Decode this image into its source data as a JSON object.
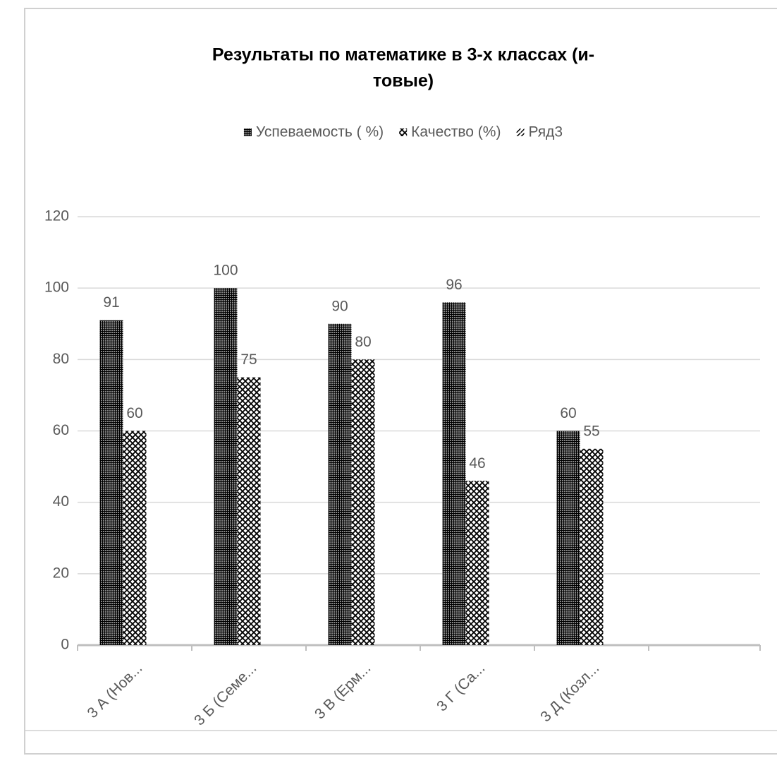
{
  "chart_data": {
    "type": "bar",
    "title": [
      "Результаты по математике в 3-х классах (и-",
      "товые)"
    ],
    "categories": [
      "3 А (Нов...",
      "3 Б (Семе...",
      "3 В (Ерм...",
      "3 Г (Са...",
      "3 Д (Козл...",
      null
    ],
    "series": [
      {
        "name": "Успеваемость ( %)",
        "color": "#000000",
        "pattern": "grid",
        "values": [
          91,
          100,
          90,
          96,
          60,
          null
        ]
      },
      {
        "name": "Качество (%)",
        "color": "#000000",
        "pattern": "diamond",
        "values": [
          60,
          75,
          80,
          46,
          55,
          null
        ]
      },
      {
        "name": "Ряд3",
        "color": "#000000",
        "pattern": "diagonal",
        "values": [
          null,
          null,
          null,
          null,
          null,
          null
        ]
      }
    ],
    "ylim": [
      0,
      120
    ],
    "yticks": [
      0,
      20,
      40,
      60,
      80,
      100,
      120
    ],
    "grid": true,
    "legend": "top"
  }
}
